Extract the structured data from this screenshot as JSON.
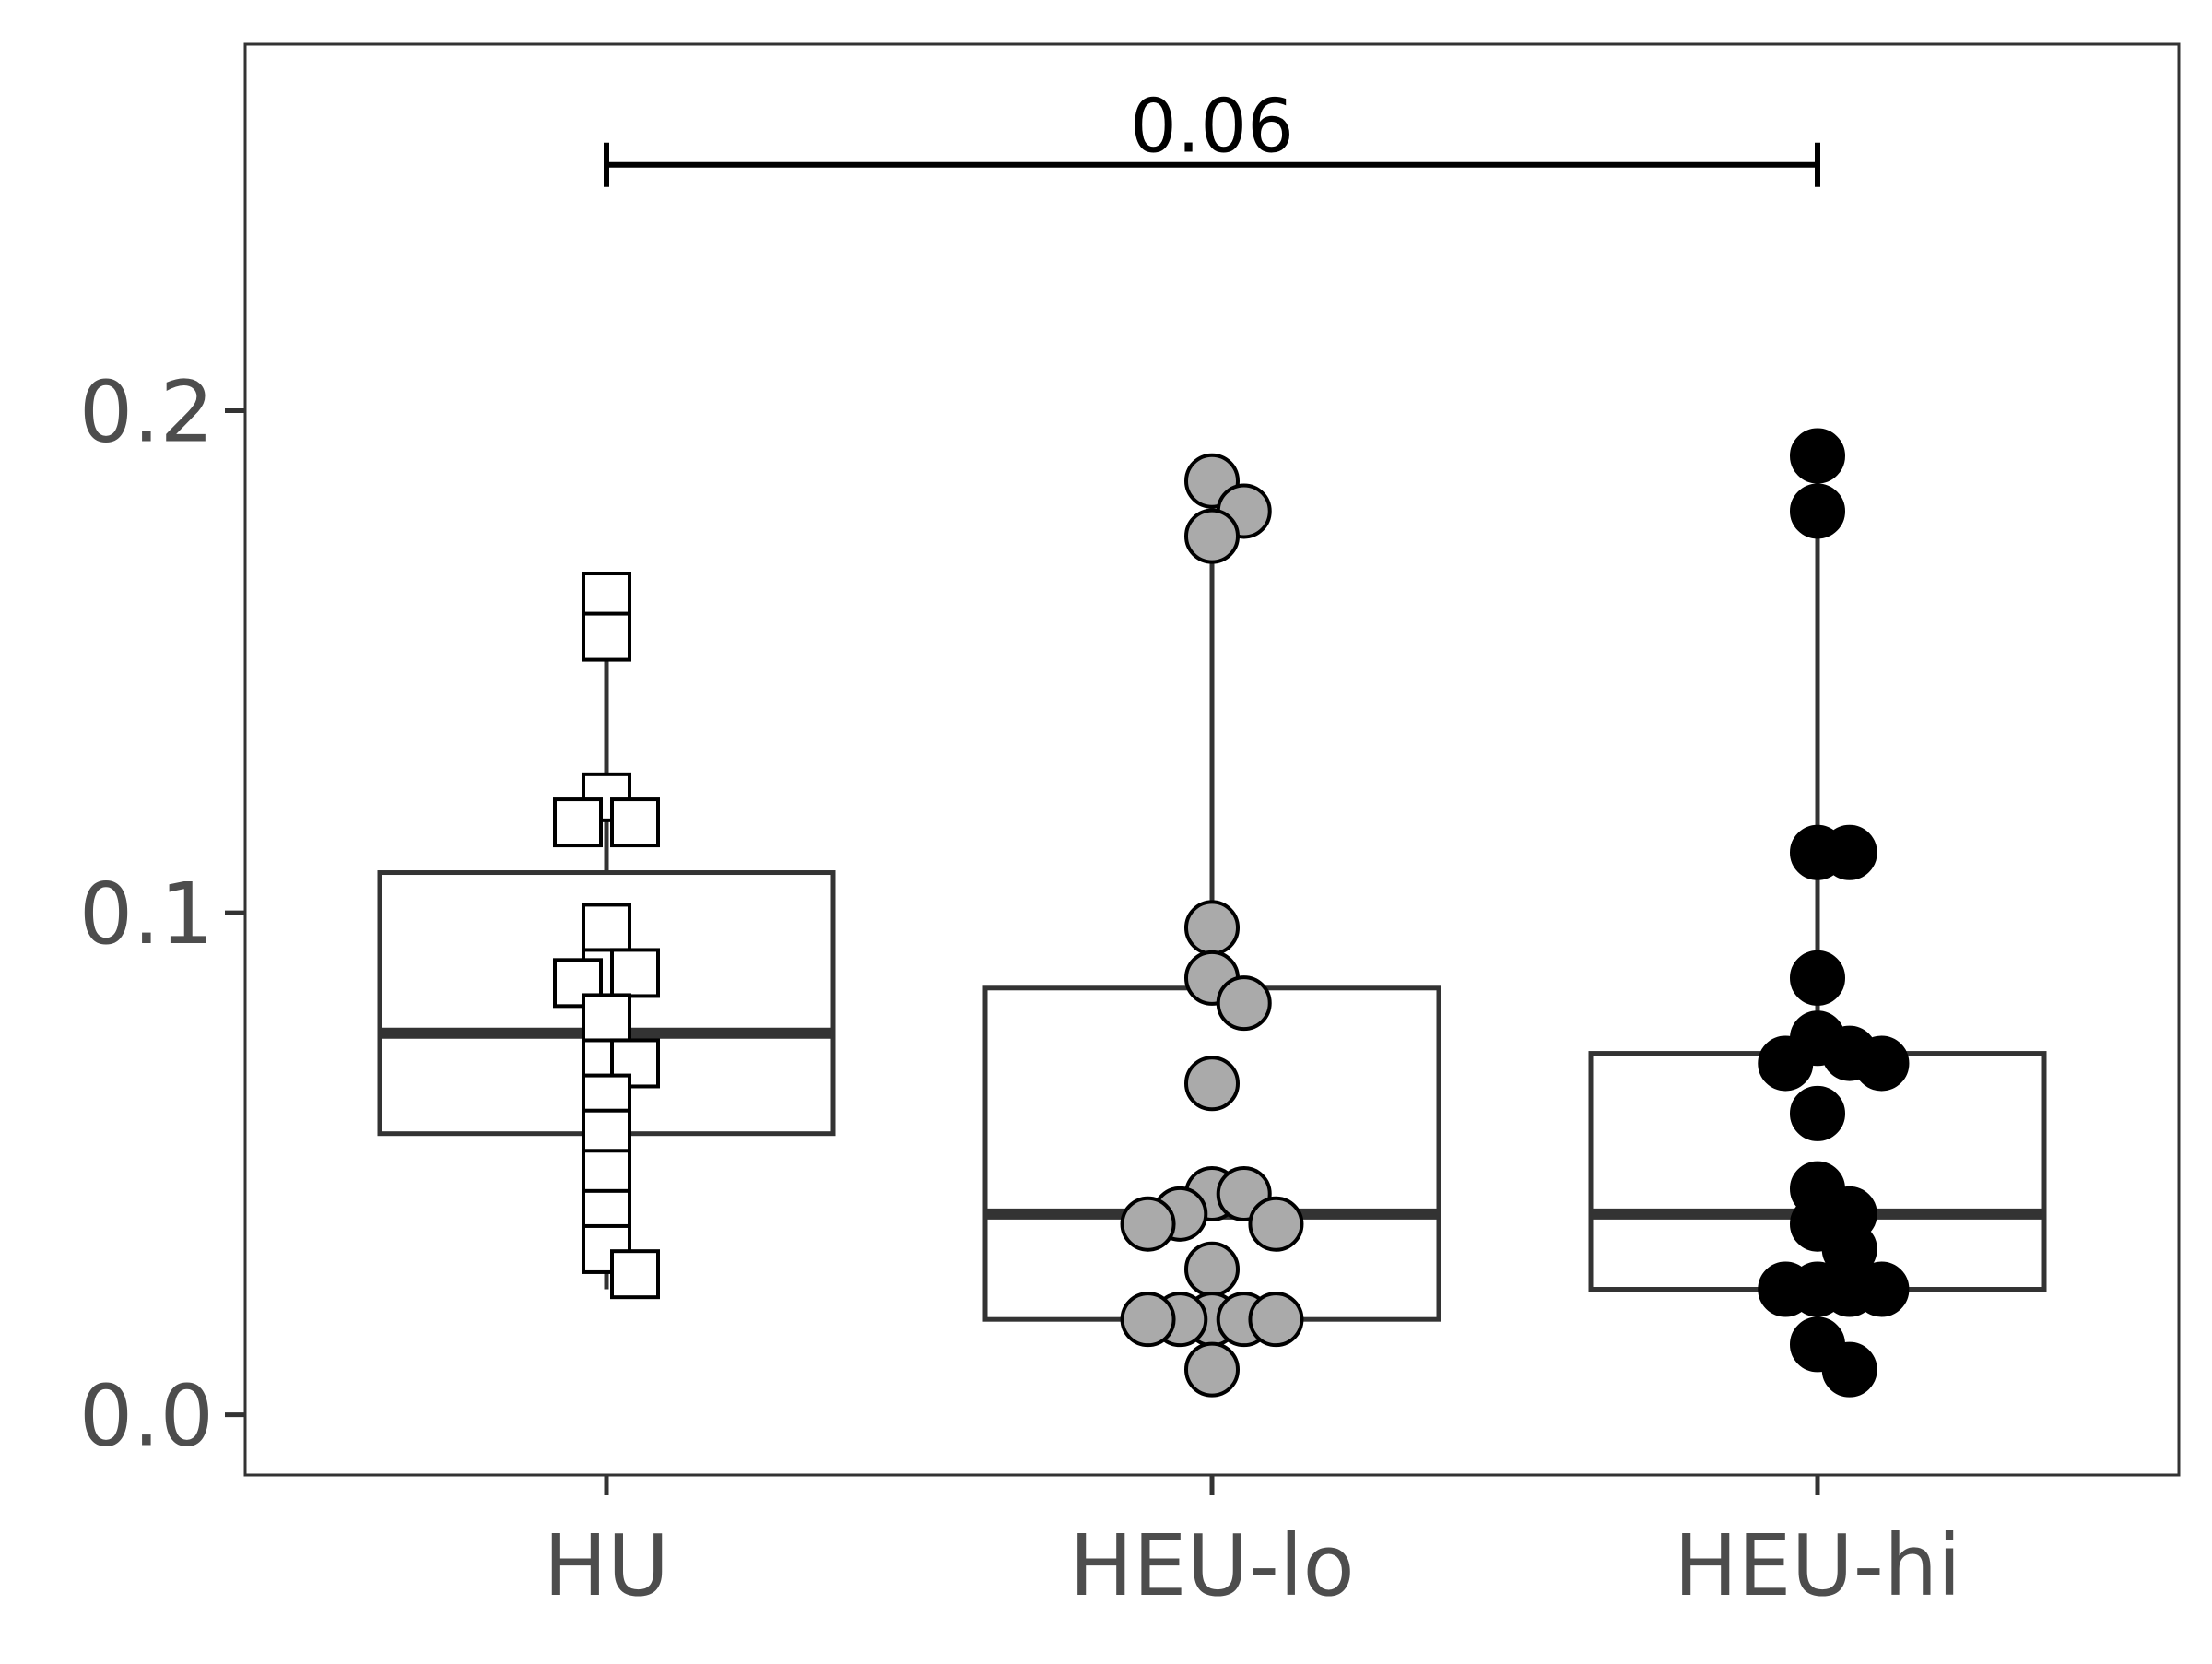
{
  "chart_data": {
    "type": "boxplot",
    "title": "",
    "xlabel": "",
    "ylabel": "",
    "categories": [
      "HU",
      "HEU-lo",
      "HEU-hi"
    ],
    "ylim": [
      -0.012,
      0.273
    ],
    "yticks": [
      0.0,
      0.1,
      0.2
    ],
    "ytick_labels": [
      "0.0",
      "0.1",
      "0.2"
    ],
    "grid": false,
    "legend": "none",
    "groups": [
      {
        "name": "HU",
        "marker": "square",
        "fill": "#ffffff",
        "box": {
          "q1": 0.056,
          "median": 0.076,
          "q3": 0.108,
          "whisker_low": 0.025,
          "whisker_high": 0.167
        },
        "points": [
          0.163,
          0.155,
          0.123,
          0.118,
          0.118,
          0.097,
          0.088,
          0.088,
          0.086,
          0.079,
          0.07,
          0.07,
          0.063,
          0.056,
          0.048,
          0.04,
          0.033,
          0.028
        ]
      },
      {
        "name": "HEU-lo",
        "marker": "circle",
        "fill": "#aaaaaa",
        "box": {
          "q1": 0.019,
          "median": 0.04,
          "q3": 0.085,
          "whisker_low": 0.009,
          "whisker_high": 0.186
        },
        "points": [
          0.186,
          0.18,
          0.175,
          0.097,
          0.087,
          0.082,
          0.066,
          0.044,
          0.044,
          0.04,
          0.038,
          0.038,
          0.029,
          0.019,
          0.019,
          0.019,
          0.019,
          0.019,
          0.009
        ]
      },
      {
        "name": "HEU-hi",
        "marker": "circle",
        "fill": "#000000",
        "box": {
          "q1": 0.025,
          "median": 0.04,
          "q3": 0.072,
          "whisker_low": 0.009,
          "whisker_high": 0.191
        },
        "points": [
          0.191,
          0.18,
          0.112,
          0.112,
          0.087,
          0.075,
          0.072,
          0.07,
          0.07,
          0.06,
          0.045,
          0.04,
          0.038,
          0.033,
          0.025,
          0.025,
          0.025,
          0.025,
          0.014,
          0.009
        ]
      }
    ],
    "annotations": [
      {
        "type": "significance-bracket",
        "from": "HU",
        "to": "HEU-hi",
        "y": 0.249,
        "label": "0.06"
      }
    ]
  }
}
